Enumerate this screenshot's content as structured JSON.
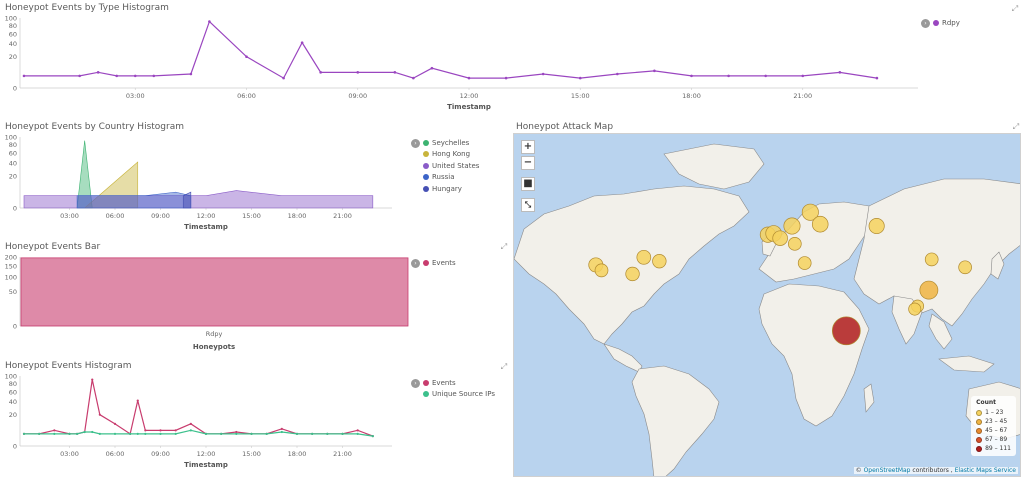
{
  "panels": {
    "type_hist": {
      "title": "Honeypot Events by Type Histogram",
      "xlabel": "Timestamp",
      "y_ticks": [
        "100",
        "80",
        "60",
        "40",
        "20",
        "0"
      ],
      "y_tick_values": [
        100,
        80,
        60,
        40,
        20,
        0
      ],
      "x_ticks": [
        "03:00",
        "06:00",
        "09:00",
        "12:00",
        "15:00",
        "18:00",
        "21:00"
      ],
      "legend": [
        {
          "label": "Rdpy",
          "color": "#9a46c0"
        }
      ]
    },
    "country_hist": {
      "title": "Honeypot Events by Country Histogram",
      "xlabel": "Timestamp",
      "y_ticks": [
        "100",
        "80",
        "60",
        "40",
        "20",
        "0"
      ],
      "y_tick_values": [
        100,
        80,
        60,
        40,
        20,
        0
      ],
      "x_ticks": [
        "03:00",
        "06:00",
        "09:00",
        "12:00",
        "15:00",
        "18:00",
        "21:00"
      ],
      "legend": [
        {
          "label": "Seychelles",
          "color": "#3cb371"
        },
        {
          "label": "Hong Kong",
          "color": "#c8b43c"
        },
        {
          "label": "United States",
          "color": "#8a5cc8"
        },
        {
          "label": "Russia",
          "color": "#3c64c8"
        },
        {
          "label": "Hungary",
          "color": "#4650b4"
        }
      ]
    },
    "bar": {
      "title": "Honeypot Events Bar",
      "xlabel": "Honeypots",
      "y_ticks": [
        "200",
        "150",
        "100",
        "50",
        "0"
      ],
      "y_tick_values": [
        200,
        150,
        100,
        50,
        0
      ],
      "category": "Rdpy",
      "legend": [
        {
          "label": "Events",
          "color": "#c83c6e"
        }
      ]
    },
    "events_hist": {
      "title": "Honeypot Events Histogram",
      "xlabel": "Timestamp",
      "y_ticks": [
        "100",
        "80",
        "60",
        "40",
        "20",
        "0"
      ],
      "y_tick_values": [
        100,
        80,
        60,
        40,
        20,
        0
      ],
      "x_ticks": [
        "03:00",
        "06:00",
        "09:00",
        "12:00",
        "15:00",
        "18:00",
        "21:00"
      ],
      "legend": [
        {
          "label": "Events",
          "color": "#c83c6e"
        },
        {
          "label": "Unique Source IPs",
          "color": "#3cc08c"
        }
      ]
    },
    "map": {
      "title": "Honeypot Attack Map",
      "zoom_in": "+",
      "zoom_out": "−",
      "legend_title": "Count",
      "legend": [
        {
          "label": "1 – 23",
          "color": "#f6d25e"
        },
        {
          "label": "23 – 45",
          "color": "#f0b442"
        },
        {
          "label": "45 – 67",
          "color": "#e88a2e"
        },
        {
          "label": "67 – 89",
          "color": "#d8502a"
        },
        {
          "label": "89 – 111",
          "color": "#b01c1c"
        }
      ],
      "attribution": {
        "prefix": "©",
        "osm": "OpenStreetMap",
        "mid": "contributors ,",
        "ems": "Elastic Maps Service"
      }
    }
  },
  "chart_data": [
    {
      "type": "line",
      "title": "Honeypot Events by Type Histogram",
      "xlabel": "Timestamp",
      "ylabel": "",
      "x_hours": [
        0,
        1.5,
        2,
        2.5,
        3,
        3.5,
        4.5,
        5,
        6,
        7,
        7.5,
        8,
        9,
        10,
        10.5,
        11,
        12,
        13,
        14,
        15,
        16,
        17,
        18,
        19,
        20,
        21,
        22,
        23
      ],
      "series": [
        {
          "name": "Rdpy",
          "values": [
            3,
            3,
            5,
            3,
            3,
            3,
            4,
            90,
            20,
            2,
            42,
            5,
            5,
            5,
            2,
            8,
            2,
            2,
            4,
            2,
            4,
            6,
            3,
            3,
            3,
            3,
            5,
            2
          ]
        }
      ],
      "ylim": [
        0,
        100
      ]
    },
    {
      "type": "area",
      "title": "Honeypot Events by Country Histogram",
      "xlabel": "Timestamp",
      "ylabel": "",
      "series": [
        {
          "name": "Seychelles",
          "x_hours": [
            3.5,
            4,
            4.5
          ],
          "values": [
            0,
            90,
            0
          ]
        },
        {
          "name": "Hong Kong",
          "x_hours": [
            4,
            7.5
          ],
          "values": [
            0,
            42
          ]
        },
        {
          "name": "United States",
          "x_hours": [
            0,
            6,
            12,
            14,
            17,
            20,
            23
          ],
          "values": [
            3,
            3,
            3,
            6,
            3,
            3,
            3
          ]
        },
        {
          "name": "Russia",
          "x_hours": [
            3.5,
            5,
            8,
            10,
            11
          ],
          "values": [
            3,
            3,
            3,
            5,
            3
          ]
        },
        {
          "name": "Hungary",
          "x_hours": [
            10.5,
            11
          ],
          "values": [
            3,
            5
          ]
        }
      ],
      "ylim": [
        0,
        100
      ]
    },
    {
      "type": "bar",
      "title": "Honeypot Events Bar",
      "xlabel": "Honeypots",
      "ylabel": "",
      "categories": [
        "Rdpy"
      ],
      "series": [
        {
          "name": "Events",
          "values": [
            195
          ]
        }
      ],
      "ylim": [
        0,
        200
      ]
    },
    {
      "type": "line",
      "title": "Honeypot Events Histogram",
      "xlabel": "Timestamp",
      "ylabel": "",
      "x_hours": [
        0,
        1,
        2,
        3,
        3.5,
        4,
        4.5,
        5,
        6,
        7,
        7.5,
        8,
        9,
        10,
        11,
        12,
        13,
        14,
        15,
        16,
        17,
        18,
        19,
        20,
        21,
        22,
        23
      ],
      "series": [
        {
          "name": "Events",
          "values": [
            3,
            3,
            5,
            3,
            3,
            4,
            90,
            20,
            10,
            3,
            42,
            5,
            5,
            5,
            10,
            3,
            3,
            4,
            3,
            3,
            6,
            3,
            3,
            3,
            3,
            5,
            2
          ]
        },
        {
          "name": "Unique Source IPs",
          "values": [
            3,
            3,
            3,
            3,
            3,
            4,
            4,
            3,
            3,
            3,
            3,
            3,
            3,
            3,
            5,
            3,
            3,
            3,
            3,
            3,
            4,
            3,
            3,
            3,
            3,
            3,
            2
          ]
        }
      ],
      "ylim": [
        0,
        100
      ]
    }
  ],
  "map_points": [
    {
      "lon": -122,
      "lat": 37,
      "count": 14
    },
    {
      "lon": -118,
      "lat": 34,
      "count": 10
    },
    {
      "lon": -96,
      "lat": 32,
      "count": 12
    },
    {
      "lon": -88,
      "lat": 41,
      "count": 13
    },
    {
      "lon": -77,
      "lat": 39,
      "count": 12
    },
    {
      "lon": -0.1,
      "lat": 51.5,
      "count": 18
    },
    {
      "lon": 4,
      "lat": 52,
      "count": 20
    },
    {
      "lon": 8.6,
      "lat": 50,
      "count": 16
    },
    {
      "lon": 17,
      "lat": 55,
      "count": 22
    },
    {
      "lon": 30,
      "lat": 60,
      "count": 22
    },
    {
      "lon": 19,
      "lat": 47.5,
      "count": 10
    },
    {
      "lon": 37,
      "lat": 55.7,
      "count": 20
    },
    {
      "lon": 77,
      "lat": 55,
      "count": 18
    },
    {
      "lon": 26,
      "lat": 38,
      "count": 10
    },
    {
      "lon": 116,
      "lat": 39.9,
      "count": 10
    },
    {
      "lon": 114,
      "lat": 22.3,
      "count": 30
    },
    {
      "lon": 139.7,
      "lat": 35.7,
      "count": 10
    },
    {
      "lon": 106,
      "lat": 12,
      "count": 8
    },
    {
      "lon": 104,
      "lat": 10,
      "count": 8
    },
    {
      "lon": 55.5,
      "lat": -4.6,
      "count": 100
    }
  ]
}
